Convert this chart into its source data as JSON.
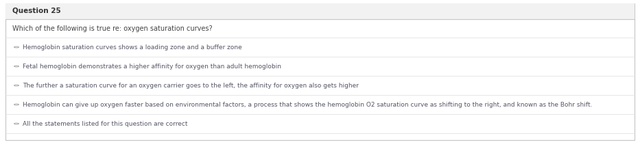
{
  "question_number": "Question 25",
  "question_text": "Which of the following is true re: oxygen saturation curves?",
  "options": [
    "Hemoglobin saturation curves shows a loading zone and a buffer zone",
    "Fetal hemoglobin demonstrates a higher affinity for oxygen than adult hemoglobin",
    "The further a saturation curve for an oxygen carrier goes to the left, the affinity for oxygen also gets higher",
    "Hemoglobin can give up oxygen faster based on environmental factors, a process that shows the hemoglobin O2 saturation curve as shifting to the right, and known as the Bohr shift.",
    "All the statements listed for this question are correct"
  ],
  "outer_border_color": "#c8c8c8",
  "header_bg_color": "#f2f2f2",
  "header_text_color": "#333333",
  "question_text_color": "#444444",
  "option_text_color": "#555566",
  "separator_color": "#dddddd",
  "bg_color": "#ffffff",
  "header_fontsize": 7.5,
  "question_fontsize": 7.0,
  "option_fontsize": 6.5,
  "bullet_color": "#aaaaaa",
  "fig_width": 9.33,
  "fig_height": 2.4,
  "dpi": 100
}
